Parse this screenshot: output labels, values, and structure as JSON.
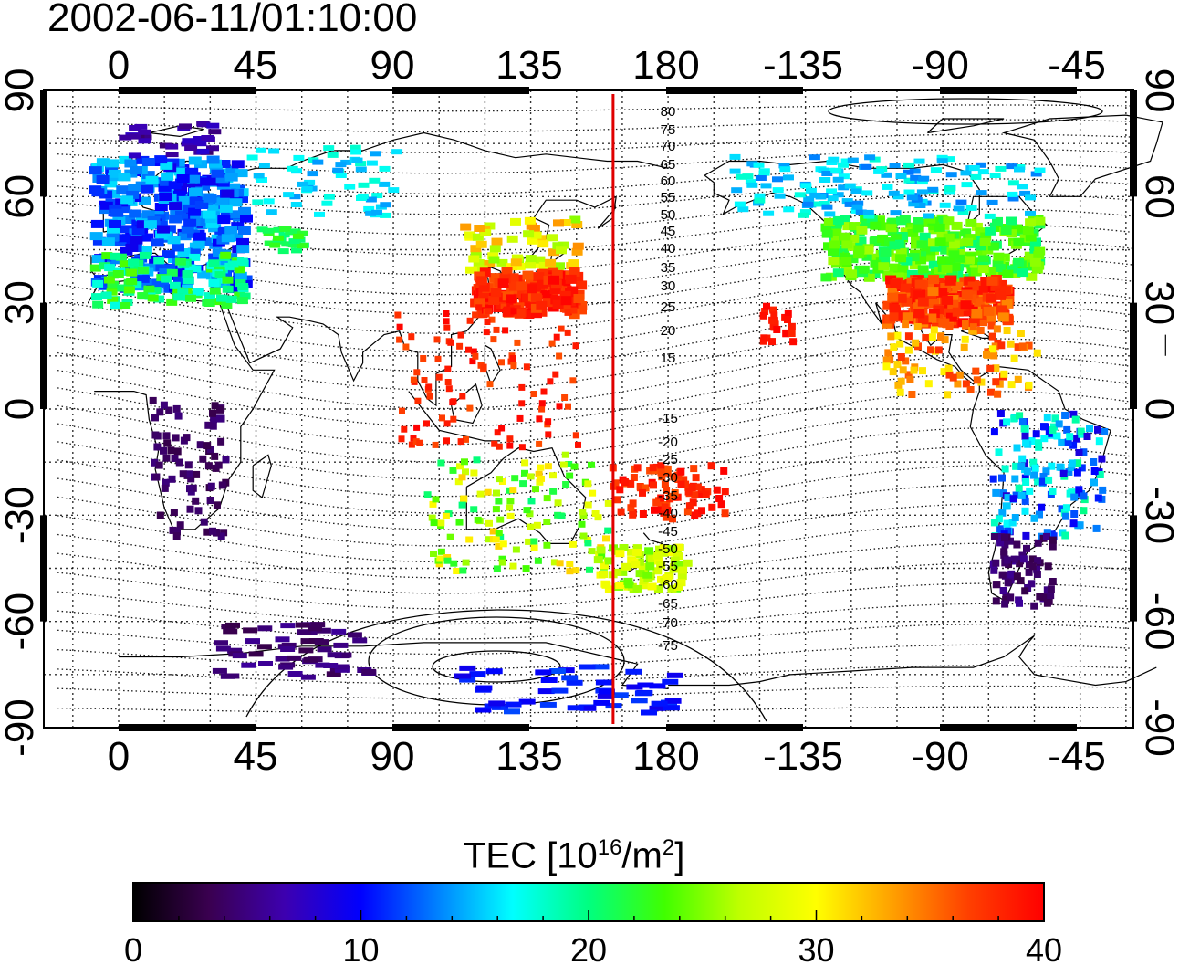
{
  "title": "2002-06-11/01:10:00",
  "map": {
    "type": "global TEC map",
    "lon_ticks": [
      "0",
      "45",
      "90",
      "135",
      "180",
      "-135",
      "-90",
      "-45"
    ],
    "lat_ticks": [
      "90",
      "60",
      "30",
      "0",
      "-30",
      "-60",
      "-90"
    ],
    "marker_longitude": 162,
    "contour_labels": [
      "80",
      "75",
      "70",
      "65",
      "60",
      "55",
      "50",
      "45",
      "40",
      "35",
      "30",
      "25",
      "20",
      "15",
      "-15",
      "-20",
      "-25",
      "-30",
      "-35",
      "-40",
      "-45",
      "-50",
      "-55",
      "-60",
      "-65",
      "-70",
      "-75"
    ]
  },
  "colorbar": {
    "label_prefix": "TEC  [10",
    "label_exp": "16",
    "label_mid": "/m",
    "label_exp2": "2",
    "label_suffix": "]",
    "min": 0,
    "max": 40,
    "tick_labels": [
      "0",
      "10",
      "20",
      "30",
      "40"
    ],
    "colors": [
      "#000000",
      "#3a0050",
      "#3d00b0",
      "#0000ff",
      "#0080ff",
      "#00ffff",
      "#00ff80",
      "#40ff00",
      "#c0ff00",
      "#ffff00",
      "#ffa000",
      "#ff4000",
      "#ff0000"
    ]
  },
  "colors": {
    "marker": "#e00000"
  }
}
